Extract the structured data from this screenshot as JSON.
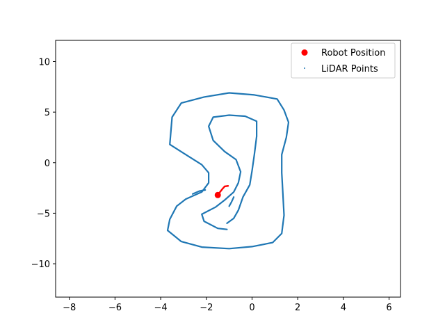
{
  "chart_data": {
    "type": "scatter",
    "xlim": [
      -8.6,
      6.5
    ],
    "ylim": [
      -13.3,
      12.1
    ],
    "xticks": [
      -8,
      -6,
      -4,
      -2,
      0,
      2,
      4,
      6
    ],
    "yticks": [
      -10,
      -5,
      0,
      5,
      10
    ],
    "grid": false,
    "legend_position": "top-right",
    "colors": {
      "robot": "#ff0000",
      "lidar": "#1f77b4"
    },
    "legend": [
      {
        "label": "Robot Position",
        "marker": "circle",
        "color": "#ff0000"
      },
      {
        "label": "LiDAR Points",
        "marker": "dot",
        "color": "#1f77b4"
      }
    ],
    "robot_position": {
      "x": -1.5,
      "y": -3.2
    },
    "robot_trajectory": [
      {
        "x": -1.5,
        "y": -3.2
      },
      {
        "x": -1.4,
        "y": -2.9
      },
      {
        "x": -1.3,
        "y": -2.6
      },
      {
        "x": -1.2,
        "y": -2.35
      },
      {
        "x": -1.05,
        "y": -2.3
      }
    ],
    "lidar_outer_loop": [
      {
        "x": 1.3,
        "y": -7.0
      },
      {
        "x": 0.9,
        "y": -7.9
      },
      {
        "x": 0.0,
        "y": -8.3
      },
      {
        "x": -1.0,
        "y": -8.5
      },
      {
        "x": -2.2,
        "y": -8.35
      },
      {
        "x": -3.1,
        "y": -7.8
      },
      {
        "x": -3.7,
        "y": -6.7
      },
      {
        "x": -3.6,
        "y": -5.6
      },
      {
        "x": -3.3,
        "y": -4.3
      },
      {
        "x": -2.9,
        "y": -3.6
      },
      {
        "x": -2.2,
        "y": -2.9
      },
      {
        "x": -1.9,
        "y": -2.0
      },
      {
        "x": -1.9,
        "y": -1.0
      },
      {
        "x": -2.2,
        "y": -0.2
      },
      {
        "x": -2.9,
        "y": 0.8
      },
      {
        "x": -3.6,
        "y": 1.8
      },
      {
        "x": -3.5,
        "y": 4.5
      },
      {
        "x": -3.1,
        "y": 5.9
      },
      {
        "x": -2.1,
        "y": 6.5
      },
      {
        "x": -1.0,
        "y": 6.9
      },
      {
        "x": 0.1,
        "y": 6.7
      },
      {
        "x": 1.1,
        "y": 6.3
      },
      {
        "x": 1.4,
        "y": 5.2
      },
      {
        "x": 1.6,
        "y": 4.0
      },
      {
        "x": 1.5,
        "y": 2.5
      },
      {
        "x": 1.3,
        "y": 0.8
      },
      {
        "x": 1.3,
        "y": -1.0
      },
      {
        "x": 1.35,
        "y": -3.0
      },
      {
        "x": 1.4,
        "y": -5.2
      },
      {
        "x": 1.3,
        "y": -7.0
      }
    ],
    "lidar_inner_loop": [
      {
        "x": -1.1,
        "y": -6.0
      },
      {
        "x": -0.8,
        "y": -5.5
      },
      {
        "x": -0.6,
        "y": -4.7
      },
      {
        "x": -0.4,
        "y": -3.4
      },
      {
        "x": -0.1,
        "y": -2.2
      },
      {
        "x": 0.0,
        "y": -0.8
      },
      {
        "x": 0.1,
        "y": 0.8
      },
      {
        "x": 0.2,
        "y": 2.6
      },
      {
        "x": 0.2,
        "y": 4.1
      },
      {
        "x": -0.3,
        "y": 4.6
      },
      {
        "x": -1.0,
        "y": 4.7
      },
      {
        "x": -1.7,
        "y": 4.5
      },
      {
        "x": -1.9,
        "y": 3.6
      },
      {
        "x": -1.7,
        "y": 2.2
      },
      {
        "x": -1.2,
        "y": 1.1
      },
      {
        "x": -0.7,
        "y": 0.3
      },
      {
        "x": -0.5,
        "y": -0.9
      },
      {
        "x": -0.6,
        "y": -2.0
      },
      {
        "x": -0.8,
        "y": -2.9
      },
      {
        "x": -1.2,
        "y": -3.7
      },
      {
        "x": -1.6,
        "y": -4.4
      },
      {
        "x": -2.2,
        "y": -5.1
      },
      {
        "x": -2.1,
        "y": -5.8
      },
      {
        "x": -1.5,
        "y": -6.5
      },
      {
        "x": -1.1,
        "y": -6.6
      }
    ],
    "lidar_fragments": [
      [
        {
          "x": -2.6,
          "y": -3.1
        },
        {
          "x": -2.3,
          "y": -2.8
        },
        {
          "x": -2.05,
          "y": -2.7
        }
      ],
      [
        {
          "x": -1.0,
          "y": -4.3
        },
        {
          "x": -0.9,
          "y": -3.9
        },
        {
          "x": -0.8,
          "y": -3.4
        }
      ]
    ]
  }
}
